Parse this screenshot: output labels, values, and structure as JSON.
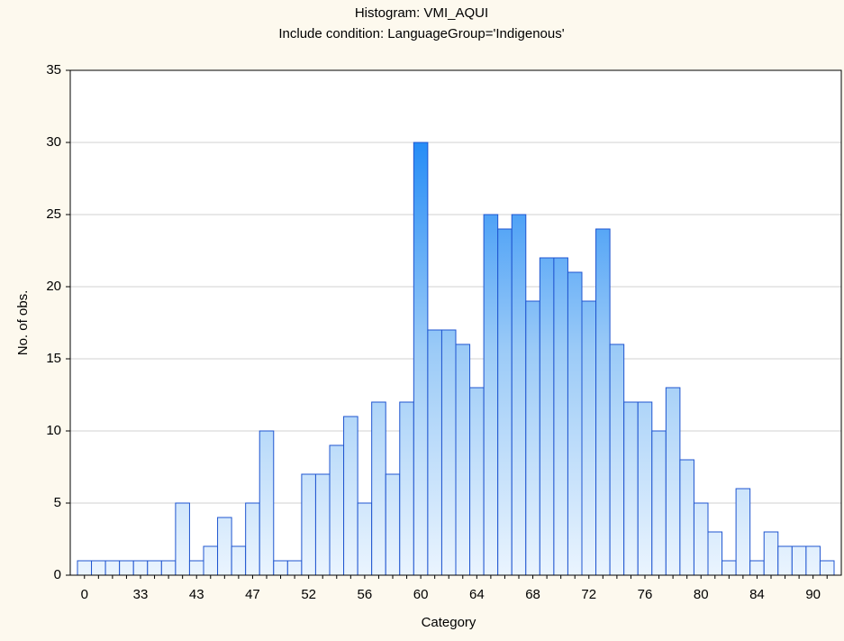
{
  "chart_data": {
    "type": "bar",
    "title": "Histogram: VMI_AQUI",
    "subtitle": "Include condition: LanguageGroup='Indigenous'",
    "xlabel": "Category",
    "ylabel": "No. of obs.",
    "categories": [
      "0",
      null,
      null,
      null,
      "33",
      null,
      null,
      null,
      "43",
      null,
      null,
      null,
      "47",
      null,
      null,
      null,
      "52",
      null,
      null,
      null,
      "56",
      null,
      null,
      null,
      "60",
      null,
      null,
      null,
      "64",
      null,
      null,
      null,
      "68",
      null,
      null,
      null,
      "72",
      null,
      null,
      null,
      "76",
      null,
      null,
      null,
      "80",
      null,
      null,
      null,
      "84",
      null,
      null,
      null,
      "90",
      null
    ],
    "values": [
      1,
      1,
      1,
      1,
      1,
      1,
      1,
      5,
      1,
      2,
      4,
      2,
      5,
      10,
      1,
      1,
      7,
      7,
      9,
      11,
      5,
      12,
      7,
      12,
      30,
      17,
      17,
      16,
      13,
      25,
      24,
      25,
      19,
      22,
      22,
      21,
      19,
      24,
      16,
      12,
      12,
      10,
      13,
      8,
      5,
      3,
      1,
      6,
      1,
      3,
      2,
      2,
      2,
      1
    ],
    "color": "#1f55d0",
    "ylim": [
      0,
      35
    ],
    "yticks": [
      0,
      5,
      10,
      15,
      20,
      25,
      30,
      35
    ],
    "grid": true
  }
}
